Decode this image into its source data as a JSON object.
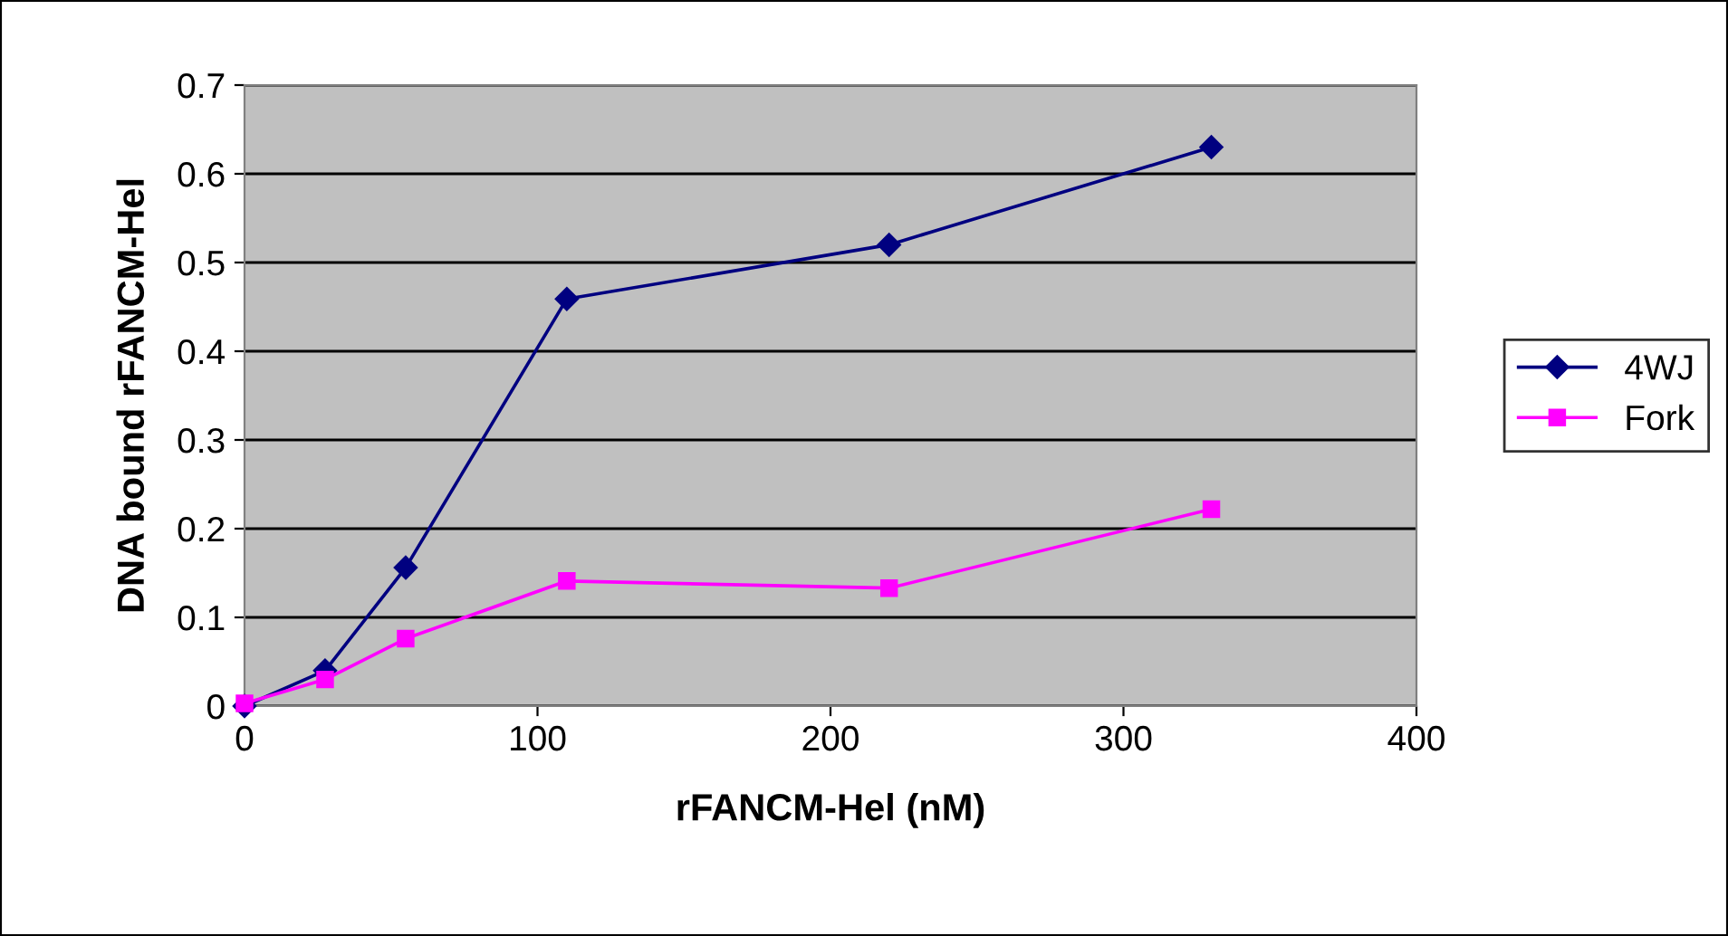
{
  "chart_data": {
    "type": "line",
    "xlabel": "rFANCM-Hel (nM)",
    "ylabel": "DNA bound rFANCM-Hel",
    "x": [
      0,
      27.5,
      55,
      110,
      220,
      330
    ],
    "series": [
      {
        "name": "4WJ",
        "color": "#000080",
        "marker": "diamond",
        "values": [
          0.0,
          0.04,
          0.156,
          0.459,
          0.52,
          0.63
        ]
      },
      {
        "name": "Fork",
        "color": "#ff00ff",
        "marker": "square",
        "values": [
          0.003,
          0.03,
          0.076,
          0.141,
          0.133,
          0.222
        ]
      }
    ],
    "xlim": [
      0,
      400
    ],
    "xticks": [
      0,
      100,
      200,
      300,
      400
    ],
    "ylim": [
      0,
      0.7
    ],
    "yticks": [
      0,
      0.1,
      0.2,
      0.3,
      0.4,
      0.5,
      0.6,
      0.7
    ],
    "grid": "y",
    "legend": "right",
    "line_style": "solid"
  }
}
